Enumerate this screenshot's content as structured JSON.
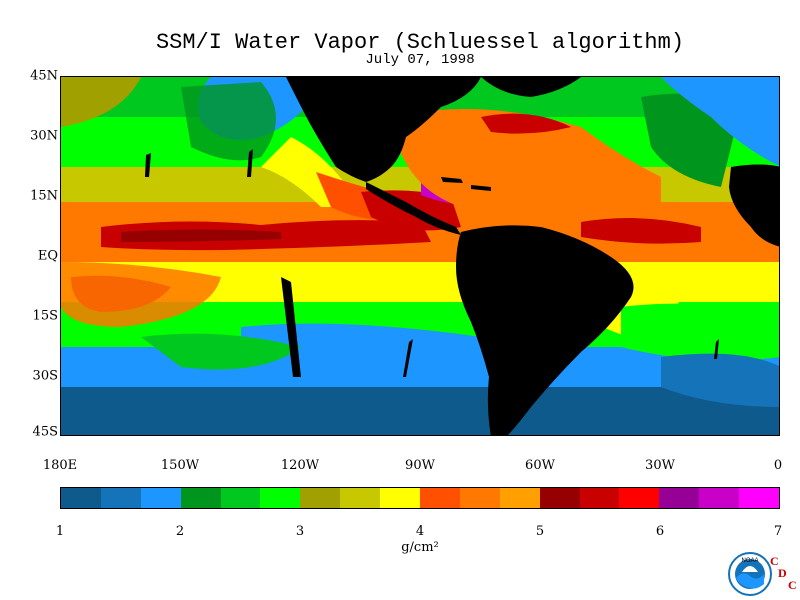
{
  "title": "SSM/I Water Vapor (Schluessel algorithm)",
  "subtitle": "July 07, 1998",
  "map": {
    "lat_labels": [
      "45N",
      "30N",
      "15N",
      "EQ",
      "15S",
      "30S",
      "45S"
    ],
    "lat_values": [
      45,
      30,
      15,
      0,
      -15,
      -30,
      -45
    ],
    "lon_labels": [
      "180E",
      "150W",
      "120W",
      "90W",
      "60W",
      "30W",
      "0"
    ],
    "lon_values": [
      -180,
      -150,
      -120,
      -90,
      -60,
      -30,
      0
    ],
    "lat_range": [
      -45,
      45
    ],
    "lon_range": [
      -180,
      0
    ],
    "land_color": "#000000"
  },
  "colorbar": {
    "colors": [
      "#0f5a8c",
      "#1473b9",
      "#1e96ff",
      "#00961e",
      "#00c81e",
      "#00ff00",
      "#a0a000",
      "#c8c800",
      "#ffff00",
      "#ff5000",
      "#ff7800",
      "#ffa000",
      "#960000",
      "#c80000",
      "#ff0000",
      "#960096",
      "#c800c8",
      "#ff00ff"
    ],
    "tick_labels": [
      "1",
      "2",
      "3",
      "4",
      "5",
      "6",
      "7"
    ],
    "tick_values": [
      1,
      2,
      3,
      4,
      5,
      6,
      7
    ],
    "range": [
      1,
      7
    ],
    "units": "g/cm²"
  },
  "logo": {
    "noaa_text": "NOAA",
    "cdc_letters": [
      "C",
      "D",
      "C"
    ]
  }
}
